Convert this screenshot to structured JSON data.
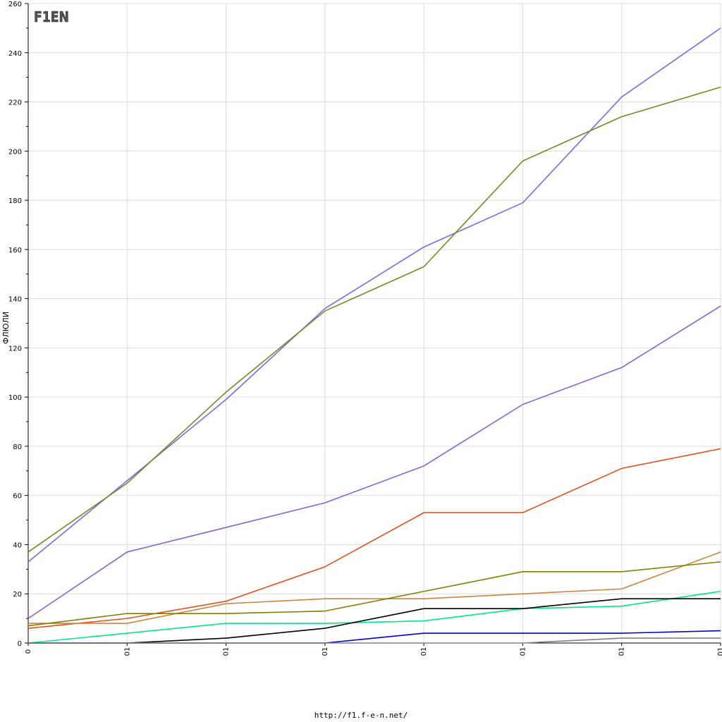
{
  "logo": {
    "text": "F1EN"
  },
  "footer": {
    "url": "http://f1.f-e-n.net/"
  },
  "chart_data": {
    "type": "line",
    "title": "",
    "xlabel": "",
    "ylabel": "ФЛЮЛИ",
    "ylim": [
      0,
      260
    ],
    "y_ticks": [
      0,
      20,
      40,
      60,
      80,
      100,
      120,
      140,
      160,
      180,
      200,
      220,
      240,
      260
    ],
    "x_ticks": [
      "0",
      "01",
      "01",
      "01",
      "01",
      "01",
      "01",
      "01"
    ],
    "grid": true,
    "legend": "none",
    "x": [
      0,
      1,
      2,
      3,
      4,
      5,
      6,
      7
    ],
    "series": [
      {
        "color": "#7b68ee",
        "values": [
          33,
          66,
          99,
          136,
          161,
          179,
          222,
          250
        ]
      },
      {
        "color": "#6b8e23",
        "values": [
          37,
          65,
          102,
          135,
          153,
          196,
          214,
          226
        ]
      },
      {
        "color": "#8a5fd6",
        "values": [
          10,
          37,
          47,
          57,
          72,
          97,
          112,
          137
        ]
      },
      {
        "color": "#e4501e",
        "values": [
          6,
          10,
          17,
          31,
          53,
          53,
          71,
          79
        ]
      },
      {
        "color": "#cd853f",
        "values": [
          8,
          8,
          16,
          18,
          18,
          20,
          22,
          37
        ]
      },
      {
        "color": "#808000",
        "values": [
          7,
          12,
          12,
          13,
          21,
          29,
          29,
          33
        ]
      },
      {
        "color": "#00e68a",
        "values": [
          0,
          4,
          8,
          8,
          9,
          14,
          15,
          21
        ]
      },
      {
        "color": "#000000",
        "values": [
          0,
          0,
          2,
          6,
          14,
          14,
          18,
          18
        ]
      },
      {
        "color": "#0000cd",
        "values": [
          0,
          0,
          0,
          0,
          4,
          4,
          4,
          5
        ]
      },
      {
        "color": "#808080",
        "values": [
          0,
          0,
          0,
          0,
          0,
          0,
          2,
          2
        ]
      }
    ]
  }
}
